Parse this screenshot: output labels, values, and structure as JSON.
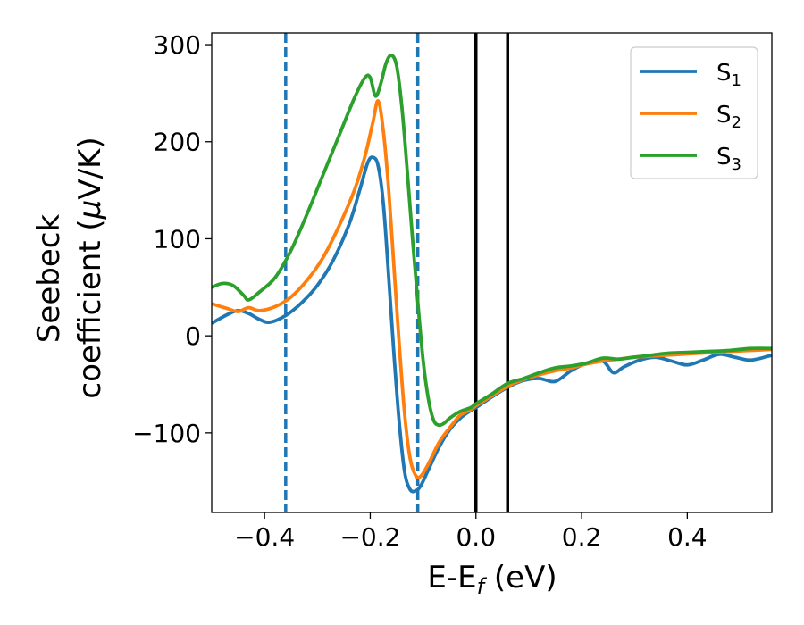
{
  "chart_data": {
    "type": "line",
    "xlabel": {
      "main": "E-E",
      "sub": "f",
      "unit": " (eV)"
    },
    "ylabel": {
      "line1": "Seebeck",
      "line2": "coefficient  (",
      "mu": "μ",
      "unit_rest": "V/K)"
    },
    "xlim": [
      -0.5,
      0.56
    ],
    "ylim": [
      -182,
      312
    ],
    "xticks": [
      -0.4,
      -0.2,
      0.0,
      0.2,
      0.4
    ],
    "xtick_labels": [
      "−0.4",
      "−0.2",
      "0.0",
      "0.2",
      "0.4"
    ],
    "yticks": [
      -100,
      0,
      100,
      200,
      300
    ],
    "ytick_labels": [
      "−100",
      "0",
      "100",
      "200",
      "300"
    ],
    "grid": false,
    "legend_position": "upper-right",
    "vlines": [
      {
        "x": -0.36,
        "style": "dashed",
        "color": "#1f77b4"
      },
      {
        "x": -0.11,
        "style": "dashed",
        "color": "#1f77b4"
      },
      {
        "x": 0.0,
        "style": "solid",
        "color": "#000000"
      },
      {
        "x": 0.06,
        "style": "solid",
        "color": "#000000"
      }
    ],
    "series": [
      {
        "name": "S",
        "sub": "1",
        "color": "#1f77b4",
        "points": [
          [
            -0.5,
            13
          ],
          [
            -0.47,
            22
          ],
          [
            -0.45,
            26
          ],
          [
            -0.43,
            23
          ],
          [
            -0.41,
            17
          ],
          [
            -0.39,
            14
          ],
          [
            -0.36,
            21
          ],
          [
            -0.33,
            34
          ],
          [
            -0.3,
            52
          ],
          [
            -0.27,
            78
          ],
          [
            -0.24,
            115
          ],
          [
            -0.22,
            150
          ],
          [
            -0.205,
            178
          ],
          [
            -0.195,
            184
          ],
          [
            -0.185,
            175
          ],
          [
            -0.175,
            135
          ],
          [
            -0.165,
            60
          ],
          [
            -0.155,
            -20
          ],
          [
            -0.145,
            -90
          ],
          [
            -0.135,
            -140
          ],
          [
            -0.125,
            -158
          ],
          [
            -0.115,
            -160
          ],
          [
            -0.105,
            -155
          ],
          [
            -0.09,
            -138
          ],
          [
            -0.07,
            -115
          ],
          [
            -0.05,
            -97
          ],
          [
            -0.03,
            -85
          ],
          [
            -0.01,
            -77
          ],
          [
            0.0,
            -74
          ],
          [
            0.03,
            -63
          ],
          [
            0.06,
            -53
          ],
          [
            0.09,
            -46
          ],
          [
            0.12,
            -44
          ],
          [
            0.15,
            -47
          ],
          [
            0.18,
            -36
          ],
          [
            0.21,
            -28
          ],
          [
            0.24,
            -26
          ],
          [
            0.26,
            -38
          ],
          [
            0.28,
            -32
          ],
          [
            0.31,
            -25
          ],
          [
            0.34,
            -22
          ],
          [
            0.37,
            -26
          ],
          [
            0.4,
            -30
          ],
          [
            0.43,
            -25
          ],
          [
            0.46,
            -19
          ],
          [
            0.49,
            -22
          ],
          [
            0.52,
            -25
          ],
          [
            0.56,
            -20
          ]
        ]
      },
      {
        "name": "S",
        "sub": "2",
        "color": "#ff7f0e",
        "points": [
          [
            -0.5,
            33
          ],
          [
            -0.47,
            28
          ],
          [
            -0.45,
            25
          ],
          [
            -0.43,
            29
          ],
          [
            -0.41,
            26
          ],
          [
            -0.38,
            30
          ],
          [
            -0.35,
            40
          ],
          [
            -0.32,
            57
          ],
          [
            -0.29,
            80
          ],
          [
            -0.26,
            112
          ],
          [
            -0.23,
            150
          ],
          [
            -0.21,
            185
          ],
          [
            -0.195,
            220
          ],
          [
            -0.185,
            242
          ],
          [
            -0.175,
            210
          ],
          [
            -0.165,
            150
          ],
          [
            -0.155,
            70
          ],
          [
            -0.145,
            -10
          ],
          [
            -0.135,
            -80
          ],
          [
            -0.125,
            -125
          ],
          [
            -0.115,
            -143
          ],
          [
            -0.105,
            -145
          ],
          [
            -0.09,
            -132
          ],
          [
            -0.07,
            -110
          ],
          [
            -0.05,
            -95
          ],
          [
            -0.03,
            -82
          ],
          [
            -0.01,
            -76
          ],
          [
            0.0,
            -72
          ],
          [
            0.03,
            -62
          ],
          [
            0.06,
            -52
          ],
          [
            0.09,
            -45
          ],
          [
            0.12,
            -40
          ],
          [
            0.15,
            -36
          ],
          [
            0.18,
            -33
          ],
          [
            0.21,
            -29
          ],
          [
            0.24,
            -26
          ],
          [
            0.27,
            -24
          ],
          [
            0.3,
            -22
          ],
          [
            0.33,
            -21
          ],
          [
            0.36,
            -20
          ],
          [
            0.39,
            -19
          ],
          [
            0.42,
            -18
          ],
          [
            0.45,
            -17
          ],
          [
            0.48,
            -16
          ],
          [
            0.52,
            -15
          ],
          [
            0.56,
            -14
          ]
        ]
      },
      {
        "name": "S",
        "sub": "3",
        "color": "#2ca02c",
        "points": [
          [
            -0.5,
            50
          ],
          [
            -0.48,
            54
          ],
          [
            -0.46,
            52
          ],
          [
            -0.44,
            42
          ],
          [
            -0.43,
            37
          ],
          [
            -0.41,
            45
          ],
          [
            -0.38,
            60
          ],
          [
            -0.35,
            88
          ],
          [
            -0.32,
            125
          ],
          [
            -0.29,
            165
          ],
          [
            -0.26,
            205
          ],
          [
            -0.23,
            245
          ],
          [
            -0.21,
            266
          ],
          [
            -0.2,
            266
          ],
          [
            -0.19,
            247
          ],
          [
            -0.18,
            260
          ],
          [
            -0.17,
            281
          ],
          [
            -0.16,
            289
          ],
          [
            -0.15,
            278
          ],
          [
            -0.14,
            235
          ],
          [
            -0.13,
            170
          ],
          [
            -0.12,
            100
          ],
          [
            -0.11,
            35
          ],
          [
            -0.1,
            -25
          ],
          [
            -0.09,
            -65
          ],
          [
            -0.08,
            -87
          ],
          [
            -0.07,
            -92
          ],
          [
            -0.06,
            -90
          ],
          [
            -0.05,
            -85
          ],
          [
            -0.03,
            -78
          ],
          [
            -0.01,
            -74
          ],
          [
            0.0,
            -70
          ],
          [
            0.03,
            -60
          ],
          [
            0.06,
            -49
          ],
          [
            0.09,
            -44
          ],
          [
            0.12,
            -38
          ],
          [
            0.15,
            -33
          ],
          [
            0.18,
            -31
          ],
          [
            0.21,
            -28
          ],
          [
            0.24,
            -23
          ],
          [
            0.27,
            -24
          ],
          [
            0.3,
            -22
          ],
          [
            0.33,
            -20
          ],
          [
            0.36,
            -18
          ],
          [
            0.4,
            -17
          ],
          [
            0.44,
            -16
          ],
          [
            0.48,
            -15
          ],
          [
            0.52,
            -13
          ],
          [
            0.56,
            -13
          ]
        ]
      }
    ]
  }
}
